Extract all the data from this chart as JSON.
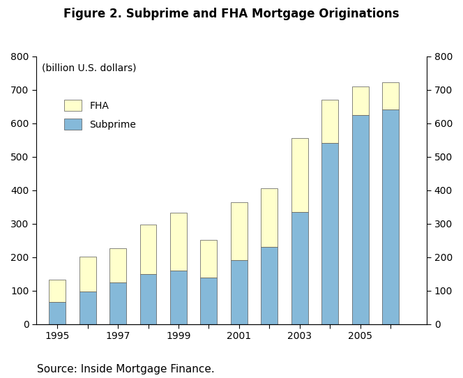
{
  "title": "Figure 2. Subprime and FHA Mortgage Originations",
  "subtitle": "(billion U.S. dollars)",
  "source": "Source: Inside Mortgage Finance.",
  "years": [
    1995,
    1996,
    1997,
    1998,
    1999,
    2000,
    2001,
    2002,
    2003,
    2004,
    2005,
    2006
  ],
  "subprime": [
    65,
    97,
    125,
    150,
    160,
    138,
    190,
    231,
    335,
    540,
    625,
    640
  ],
  "fha_total": [
    132,
    202,
    227,
    297,
    333,
    252,
    363,
    405,
    555,
    670,
    710,
    722
  ],
  "subprime_color": "#85B9D9",
  "fha_color": "#FFFFCC",
  "bar_width": 0.55,
  "ylim": [
    0,
    800
  ],
  "yticks": [
    0,
    100,
    200,
    300,
    400,
    500,
    600,
    700,
    800
  ],
  "x_label_years": [
    1995,
    1997,
    1999,
    2001,
    2003,
    2005
  ],
  "title_fontsize": 12,
  "axis_fontsize": 10,
  "legend_fontsize": 10,
  "source_fontsize": 11
}
